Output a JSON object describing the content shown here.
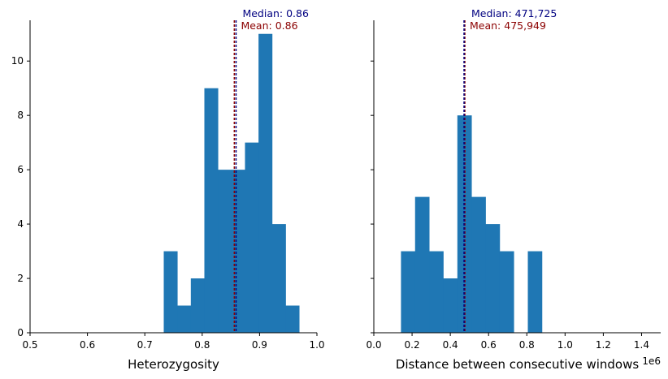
{
  "chart_data": [
    {
      "type": "histogram",
      "xlabel": "Heterozygosity",
      "ylabel": "",
      "xlim": [
        0.5,
        1.0
      ],
      "ylim": [
        0,
        11.5
      ],
      "xticks": [
        "0.5",
        "0.6",
        "0.7",
        "0.8",
        "0.9",
        "1.0"
      ],
      "xtick_values": [
        0.5,
        0.6,
        0.7,
        0.8,
        0.9,
        1.0
      ],
      "yticks": [
        "0",
        "2",
        "4",
        "6",
        "8",
        "10"
      ],
      "ytick_values": [
        0,
        2,
        4,
        6,
        8,
        10
      ],
      "bin_edges": [
        0.733,
        0.7566,
        0.7802,
        0.8038,
        0.8274,
        0.851,
        0.8746,
        0.8982,
        0.9218,
        0.9454,
        0.969
      ],
      "counts": [
        3,
        1,
        2,
        9,
        6,
        6,
        7,
        11,
        4,
        1
      ],
      "bar_color": "#1f77b4",
      "annotations": {
        "median": {
          "value": 0.859,
          "label": "Median: 0.86",
          "color": "#000080"
        },
        "mean": {
          "value": 0.856,
          "label": "Mean: 0.86",
          "color": "#8b0000"
        }
      }
    },
    {
      "type": "histogram",
      "xlabel": "Distance between consecutive windows",
      "ylabel": "",
      "offset_text": "1e6",
      "xlim": [
        0.0,
        1.5
      ],
      "ylim": [
        0,
        11.5
      ],
      "xticks": [
        "0.0",
        "0.2",
        "0.4",
        "0.6",
        "0.8",
        "1.0",
        "1.2",
        "1.4"
      ],
      "xtick_values": [
        0.0,
        0.2,
        0.4,
        0.6,
        0.8,
        1.0,
        1.2,
        1.4
      ],
      "ytick_values": [
        0,
        2,
        4,
        6,
        8,
        10
      ],
      "bin_edges": [
        0.142,
        0.2157,
        0.2894,
        0.3631,
        0.4368,
        0.5105,
        0.5842,
        0.6579,
        0.7316,
        0.8053,
        0.879
      ],
      "counts": [
        3,
        5,
        3,
        2,
        8,
        5,
        4,
        3,
        0,
        3
      ],
      "bar_color": "#1f77b4",
      "annotations": {
        "median": {
          "value": 0.471725,
          "label": "Median: 471,725",
          "color": "#000080"
        },
        "mean": {
          "value": 0.475949,
          "label": "Mean: 475,949",
          "color": "#8b0000"
        }
      }
    }
  ]
}
